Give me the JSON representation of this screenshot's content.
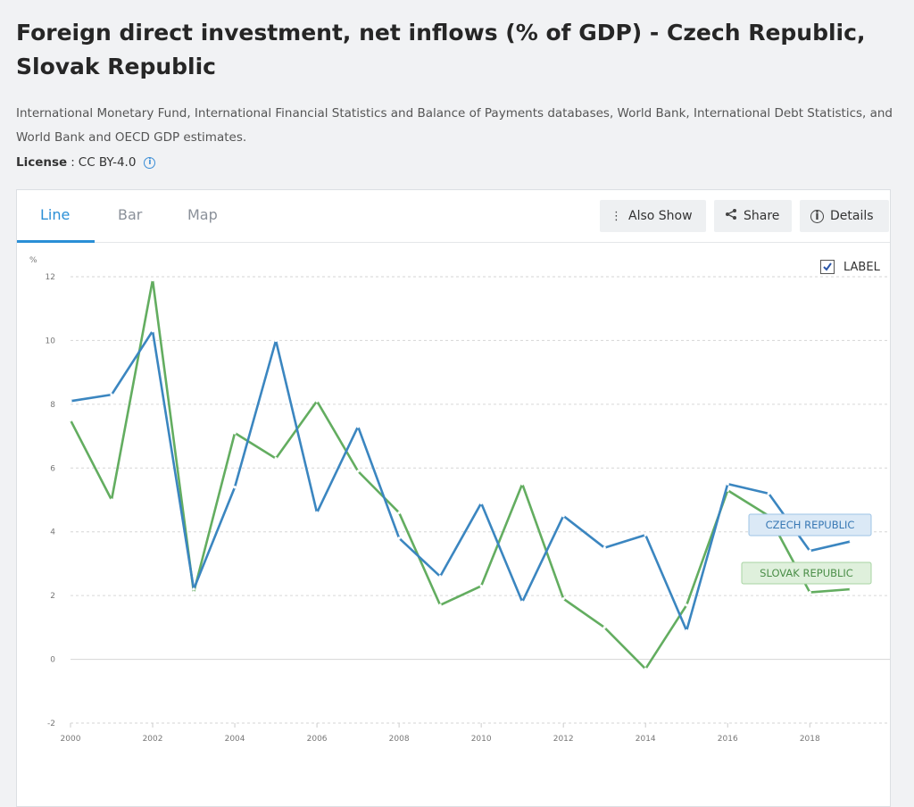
{
  "header": {
    "title": "Foreign direct investment, net inflows (% of GDP) - Czech Republic, Slovak Republic",
    "source": "International Monetary Fund, International Financial Statistics and Balance of Payments databases, World Bank, International Debt Statistics, and World Bank and OECD GDP estimates.",
    "license_label": "License",
    "license_sep": ":",
    "license_value": "CC BY-4.0",
    "info_icon": "info-icon"
  },
  "tabs": [
    {
      "label": "Line",
      "active": true
    },
    {
      "label": "Bar",
      "active": false
    },
    {
      "label": "Map",
      "active": false
    }
  ],
  "toolbar": {
    "also_show": "Also Show",
    "share": "Share",
    "details": "Details"
  },
  "label_toggle": {
    "label": "LABEL",
    "checked": true
  },
  "colors": {
    "czech": "#3b86c0",
    "slovak": "#63ad60",
    "accent": "#2a8fd6"
  },
  "chart_data": {
    "type": "line",
    "title": "",
    "xlabel": "",
    "ylabel": "%",
    "ylim": [
      -2,
      12
    ],
    "yticks": [
      -2,
      0,
      2,
      4,
      6,
      8,
      10,
      12
    ],
    "xticks": [
      2000,
      2002,
      2004,
      2006,
      2008,
      2010,
      2012,
      2014,
      2016,
      2018
    ],
    "grid": true,
    "x": [
      2000,
      2001,
      2002,
      2003,
      2004,
      2005,
      2006,
      2007,
      2008,
      2009,
      2010,
      2011,
      2012,
      2013,
      2014,
      2015,
      2016,
      2017,
      2018,
      2019
    ],
    "series": [
      {
        "name": "CZECH REPUBLIC",
        "values": [
          8.1,
          8.3,
          10.3,
          2.2,
          5.4,
          10.0,
          4.6,
          7.3,
          3.8,
          2.6,
          4.9,
          1.8,
          4.5,
          3.5,
          3.9,
          0.9,
          5.5,
          5.2,
          3.4,
          3.7
        ]
      },
      {
        "name": "SLOVAK REPUBLIC",
        "values": [
          7.5,
          5.0,
          11.9,
          2.1,
          7.1,
          6.3,
          8.1,
          5.9,
          4.6,
          1.7,
          2.3,
          5.5,
          1.9,
          1.0,
          -0.3,
          1.7,
          5.3,
          4.5,
          2.1,
          2.2
        ]
      }
    ]
  }
}
